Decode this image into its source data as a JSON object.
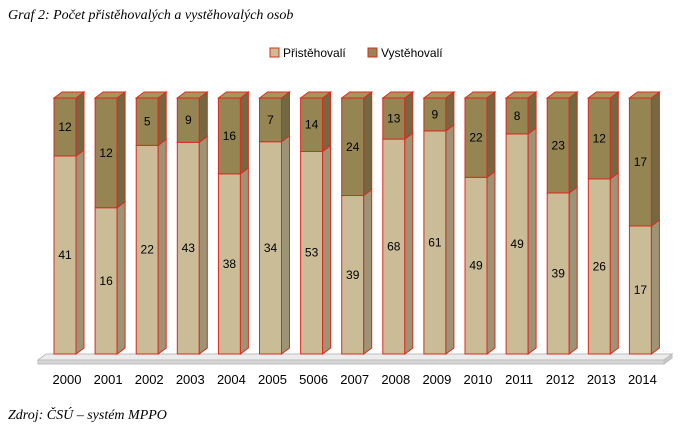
{
  "title": "Graf 2: Počet přistěhovalých a vystěhovalých osob",
  "source": "Zdroj: ČSÚ – systém MPPO",
  "colors": {
    "immigrants": "#c9bc96",
    "emigrants": "#958552",
    "edge": "#e0281e",
    "floor": "#ececec"
  },
  "chart_data": {
    "type": "bar",
    "stacked": true,
    "normalized": true,
    "three_d": true,
    "legend_position": "top-center",
    "categories": [
      "2000",
      "2001",
      "2002",
      "2003",
      "2004",
      "2005",
      "5006",
      "2007",
      "2008",
      "2009",
      "2010",
      "2011",
      "2012",
      "2013",
      "2014"
    ],
    "series": [
      {
        "name": "Přistěhovalí",
        "values": [
          41,
          16,
          22,
          43,
          38,
          34,
          53,
          39,
          68,
          61,
          49,
          49,
          39,
          26,
          17
        ]
      },
      {
        "name": "Vystěhovalí",
        "values": [
          12,
          12,
          5,
          9,
          16,
          7,
          14,
          24,
          13,
          9,
          22,
          8,
          23,
          12,
          17
        ]
      }
    ]
  }
}
